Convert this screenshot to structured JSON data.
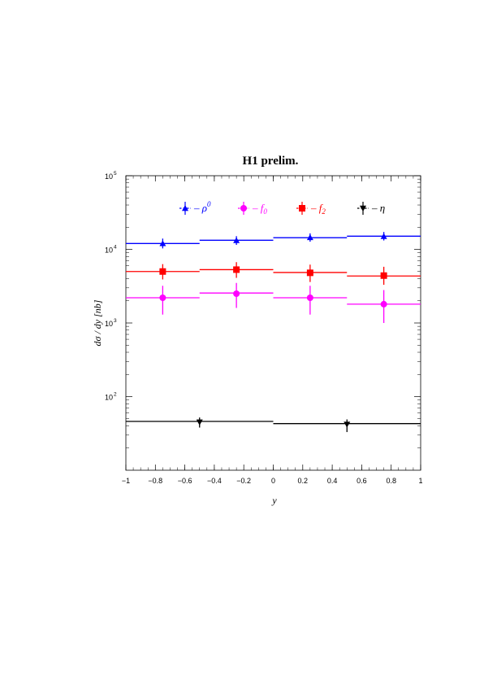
{
  "chart_data": {
    "type": "scatter",
    "title": "H1 prelim.",
    "title_color": "#ff0000",
    "xlabel": "y",
    "ylabel": "dσ / dy [nb]",
    "xlim": [
      -1,
      1
    ],
    "ylim": [
      10,
      100000
    ],
    "yscale": "log",
    "x_ticks": [
      -1,
      -0.8,
      -0.6,
      -0.4,
      -0.2,
      0,
      0.2,
      0.4,
      0.6,
      0.8,
      1
    ],
    "x_tick_labels": [
      "−1",
      "−0.8",
      "−0.6",
      "−0.4",
      "−0.2",
      "0",
      "0.2",
      "0.4",
      "0.6",
      "0.8",
      "1"
    ],
    "y_tick_labels": [
      {
        "base": "10",
        "exp": "2",
        "value": 100
      },
      {
        "base": "10",
        "exp": "3",
        "value": 1000
      },
      {
        "base": "10",
        "exp": "4",
        "value": 10000
      },
      {
        "base": "10",
        "exp": "5",
        "value": 100000
      }
    ],
    "grid": false,
    "legend_position": "top",
    "series": [
      {
        "name": "ρ0",
        "legend_prefix": "– ρ",
        "legend_sup": "0",
        "legend_sub": "",
        "color": "#0000ff",
        "marker": "triangle-up",
        "points": [
          {
            "x": -0.75,
            "y": 12000,
            "err_lo": 10300,
            "err_hi": 14000
          },
          {
            "x": -0.25,
            "y": 13200,
            "err_lo": 11500,
            "err_hi": 15100
          },
          {
            "x": 0.25,
            "y": 14500,
            "err_lo": 12700,
            "err_hi": 16500
          },
          {
            "x": 0.75,
            "y": 15000,
            "err_lo": 13200,
            "err_hi": 17200
          }
        ],
        "steps": [
          {
            "x0": -1,
            "x1": -0.5,
            "y": 12000
          },
          {
            "x0": -0.5,
            "x1": 0,
            "y": 13300
          },
          {
            "x0": 0,
            "x1": 0.5,
            "y": 14400
          },
          {
            "x0": 0.5,
            "x1": 1,
            "y": 15100
          }
        ]
      },
      {
        "name": "f0",
        "legend_prefix": "– f",
        "legend_sup": "",
        "legend_sub": "0",
        "color": "#ff00ff",
        "marker": "circle",
        "points": [
          {
            "x": -0.75,
            "y": 2200,
            "err_lo": 1300,
            "err_hi": 3200
          },
          {
            "x": -0.25,
            "y": 2500,
            "err_lo": 1600,
            "err_hi": 3500
          },
          {
            "x": 0.25,
            "y": 2200,
            "err_lo": 1300,
            "err_hi": 3200
          },
          {
            "x": 0.75,
            "y": 1800,
            "err_lo": 1000,
            "err_hi": 2800
          }
        ],
        "steps": [
          {
            "x0": -1,
            "x1": -0.5,
            "y": 2200
          },
          {
            "x0": -0.5,
            "x1": 0,
            "y": 2550
          },
          {
            "x0": 0,
            "x1": 0.5,
            "y": 2200
          },
          {
            "x0": 0.5,
            "x1": 1,
            "y": 1800
          }
        ]
      },
      {
        "name": "f2",
        "legend_prefix": "– f",
        "legend_sup": "",
        "legend_sub": "2",
        "color": "#ff0000",
        "marker": "square",
        "points": [
          {
            "x": -0.75,
            "y": 5000,
            "err_lo": 3900,
            "err_hi": 6300
          },
          {
            "x": -0.25,
            "y": 5300,
            "err_lo": 4100,
            "err_hi": 6700
          },
          {
            "x": 0.25,
            "y": 4800,
            "err_lo": 3600,
            "err_hi": 6200
          },
          {
            "x": 0.75,
            "y": 4400,
            "err_lo": 3300,
            "err_hi": 5800
          }
        ],
        "steps": [
          {
            "x0": -1,
            "x1": -0.5,
            "y": 5000
          },
          {
            "x0": -0.5,
            "x1": 0,
            "y": 5300
          },
          {
            "x0": 0,
            "x1": 0.5,
            "y": 4850
          },
          {
            "x0": 0.5,
            "x1": 1,
            "y": 4350
          }
        ]
      },
      {
        "name": "η",
        "legend_prefix": "– η",
        "legend_sup": "",
        "legend_sub": "",
        "color": "#000000",
        "marker": "triangle-down",
        "points": [
          {
            "x": -0.5,
            "y": 45,
            "err_lo": 38,
            "err_hi": 52
          },
          {
            "x": 0.5,
            "y": 42,
            "err_lo": 33,
            "err_hi": 49
          }
        ],
        "steps": [
          {
            "x0": -1,
            "x1": 0,
            "y": 46
          },
          {
            "x0": 0,
            "x1": 1,
            "y": 43
          }
        ]
      }
    ]
  }
}
